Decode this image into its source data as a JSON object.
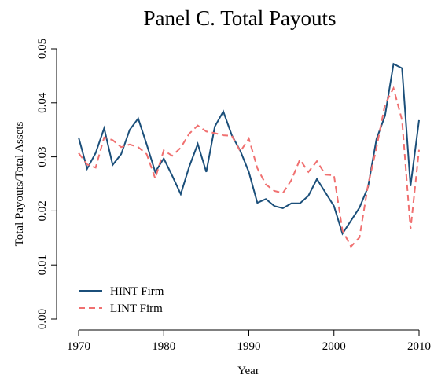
{
  "chart_data": {
    "type": "line",
    "title": "Panel C. Total Payouts",
    "x_label": "Year",
    "y_label": "Total Payouts/Total Assets",
    "x": [
      1970,
      1971,
      1972,
      1973,
      1974,
      1975,
      1976,
      1977,
      1978,
      1979,
      1980,
      1981,
      1982,
      1983,
      1984,
      1985,
      1986,
      1987,
      1988,
      1989,
      1990,
      1991,
      1992,
      1993,
      1994,
      1995,
      1996,
      1997,
      1998,
      1999,
      2000,
      2001,
      2002,
      2003,
      2004,
      2005,
      2006,
      2007,
      2008,
      2009,
      2010
    ],
    "series": [
      {
        "name": "HINT Firm",
        "color": "#1b4f7a",
        "dash": false,
        "values": [
          0.0336,
          0.0278,
          0.0307,
          0.0353,
          0.0285,
          0.0305,
          0.035,
          0.0371,
          0.0323,
          0.0272,
          0.0297,
          0.0265,
          0.0231,
          0.0282,
          0.0324,
          0.0272,
          0.0356,
          0.0384,
          0.034,
          0.0311,
          0.0272,
          0.0215,
          0.0222,
          0.0209,
          0.0205,
          0.0214,
          0.0214,
          0.0228,
          0.0259,
          0.0234,
          0.0209,
          0.0158,
          0.0182,
          0.0206,
          0.0244,
          0.0333,
          0.0376,
          0.0472,
          0.0464,
          0.0246,
          0.0368
        ]
      },
      {
        "name": "LINT Firm",
        "color": "#f07070",
        "dash": true,
        "values": [
          0.0307,
          0.0286,
          0.028,
          0.0336,
          0.0331,
          0.0318,
          0.0323,
          0.0318,
          0.0305,
          0.026,
          0.0312,
          0.0302,
          0.0317,
          0.0343,
          0.0358,
          0.0347,
          0.0344,
          0.034,
          0.0339,
          0.031,
          0.0334,
          0.0279,
          0.0249,
          0.0237,
          0.0233,
          0.0257,
          0.0295,
          0.0272,
          0.0292,
          0.0267,
          0.0266,
          0.0164,
          0.0134,
          0.0151,
          0.0247,
          0.0317,
          0.0397,
          0.0427,
          0.0368,
          0.0166,
          0.0313
        ]
      }
    ],
    "xlim": [
      1970,
      2010
    ],
    "xticks": [
      1970,
      1980,
      1990,
      2000,
      2010
    ],
    "ylim": [
      0,
      0.05
    ],
    "yticks": [
      {
        "value": 0,
        "label": "0.00"
      },
      {
        "value": 0.01,
        "label": "0.01"
      },
      {
        "value": 0.02,
        "label": "0.02"
      },
      {
        "value": 0.03,
        "label": "0.03"
      },
      {
        "value": 0.04,
        "label": "0.04"
      },
      {
        "value": 0.05,
        "label": "0.05"
      }
    ],
    "legend": "bottom-left"
  }
}
